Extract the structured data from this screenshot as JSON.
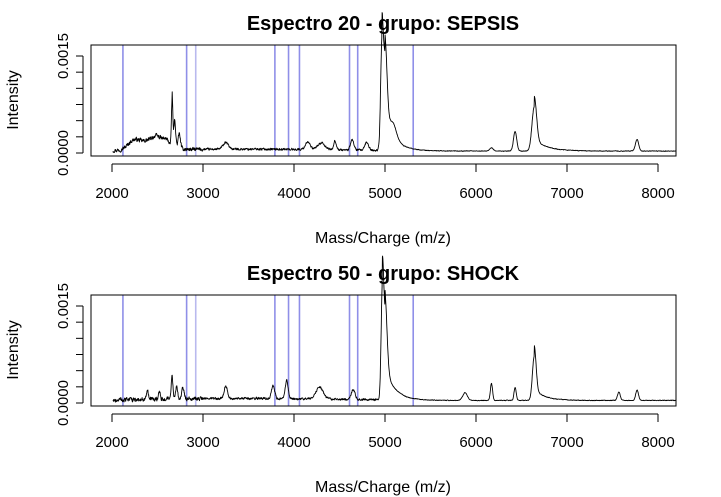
{
  "chart_data": [
    {
      "type": "line",
      "title": "Espectro  20 - grupo:  SEPSIS",
      "xlabel": "Mass/Charge (m/z)",
      "ylabel": "Intensity",
      "xlim": [
        2000,
        8200
      ],
      "ylim": [
        0,
        0.0016
      ],
      "x_ticks": [
        2000,
        3000,
        4000,
        5000,
        6000,
        7000,
        8000
      ],
      "x_tick_labels": [
        "2000",
        "3000",
        "4000",
        "5000",
        "6000",
        "7000",
        "8000"
      ],
      "y_ticks": [
        0,
        0.00025,
        0.0005,
        0.00075,
        0.001,
        0.00125,
        0.0015
      ],
      "y_tick_labels": {
        "0": "0.0000",
        "0.0015": "0.0015"
      },
      "marker_lines_mz": [
        2120,
        2820,
        2920,
        3790,
        3940,
        4060,
        4610,
        4700,
        5310
      ],
      "marker_color": "#8f8fe8",
      "line_color": "#000000",
      "baseline": 3e-05,
      "peaks": [
        {
          "mz": 2250,
          "height": 0.00016,
          "width": 70
        },
        {
          "mz": 2400,
          "height": 0.00012,
          "width": 60
        },
        {
          "mz": 2500,
          "height": 0.00018,
          "width": 50
        },
        {
          "mz": 2600,
          "height": 0.00014,
          "width": 40
        },
        {
          "mz": 2660,
          "height": 0.0007,
          "width": 7
        },
        {
          "mz": 2690,
          "height": 0.00035,
          "width": 10
        },
        {
          "mz": 2740,
          "height": 0.00022,
          "width": 12
        },
        {
          "mz": 3250,
          "height": 0.0001,
          "width": 30
        },
        {
          "mz": 4150,
          "height": 0.00012,
          "width": 25
        },
        {
          "mz": 4300,
          "height": 0.0001,
          "width": 40
        },
        {
          "mz": 4450,
          "height": 0.00014,
          "width": 15
        },
        {
          "mz": 4640,
          "height": 0.00016,
          "width": 18
        },
        {
          "mz": 4800,
          "height": 0.00012,
          "width": 20
        },
        {
          "mz": 4965,
          "height": 0.0014,
          "width": 14
        },
        {
          "mz": 5000,
          "height": 0.0012,
          "width": 22
        },
        {
          "mz": 5090,
          "height": 0.0002,
          "width": 35
        },
        {
          "mz": 6170,
          "height": 5e-05,
          "width": 20
        },
        {
          "mz": 6430,
          "height": 0.0003,
          "width": 18
        },
        {
          "mz": 6640,
          "height": 0.00068,
          "width": 25
        },
        {
          "mz": 7770,
          "height": 0.00018,
          "width": 18
        }
      ]
    },
    {
      "type": "line",
      "title": "Espectro  50 - grupo:  SHOCK",
      "xlabel": "Mass/Charge (m/z)",
      "ylabel": "Intensity",
      "xlim": [
        2000,
        8200
      ],
      "ylim": [
        0,
        0.0016
      ],
      "x_ticks": [
        2000,
        3000,
        4000,
        5000,
        6000,
        7000,
        8000
      ],
      "x_tick_labels": [
        "2000",
        "3000",
        "4000",
        "5000",
        "6000",
        "7000",
        "8000"
      ],
      "y_ticks": [
        0,
        0.00025,
        0.0005,
        0.00075,
        0.001,
        0.00125,
        0.0015
      ],
      "y_tick_labels": {
        "0": "0.0000",
        "0.0015": "0.0015"
      },
      "marker_lines_mz": [
        2120,
        2820,
        2920,
        3790,
        3940,
        4060,
        4610,
        4700,
        5310
      ],
      "marker_color": "#8f8fe8",
      "line_color": "#000000",
      "baseline": 4e-05,
      "peaks": [
        {
          "mz": 2390,
          "height": 0.00014,
          "width": 10
        },
        {
          "mz": 2520,
          "height": 0.00011,
          "width": 10
        },
        {
          "mz": 2660,
          "height": 0.00035,
          "width": 10
        },
        {
          "mz": 2710,
          "height": 0.00022,
          "width": 10
        },
        {
          "mz": 2780,
          "height": 0.00018,
          "width": 12
        },
        {
          "mz": 3250,
          "height": 0.0002,
          "width": 18
        },
        {
          "mz": 3770,
          "height": 0.0002,
          "width": 18
        },
        {
          "mz": 3920,
          "height": 0.00028,
          "width": 16
        },
        {
          "mz": 4280,
          "height": 0.00018,
          "width": 40
        },
        {
          "mz": 4650,
          "height": 0.00015,
          "width": 20
        },
        {
          "mz": 4970,
          "height": 0.0014,
          "width": 13
        },
        {
          "mz": 5000,
          "height": 0.0011,
          "width": 22
        },
        {
          "mz": 5880,
          "height": 0.00012,
          "width": 25
        },
        {
          "mz": 6170,
          "height": 0.00026,
          "width": 12
        },
        {
          "mz": 6430,
          "height": 0.0002,
          "width": 12
        },
        {
          "mz": 6640,
          "height": 0.00068,
          "width": 20
        },
        {
          "mz": 7570,
          "height": 0.00013,
          "width": 15
        },
        {
          "mz": 7770,
          "height": 0.00016,
          "width": 15
        }
      ]
    }
  ]
}
